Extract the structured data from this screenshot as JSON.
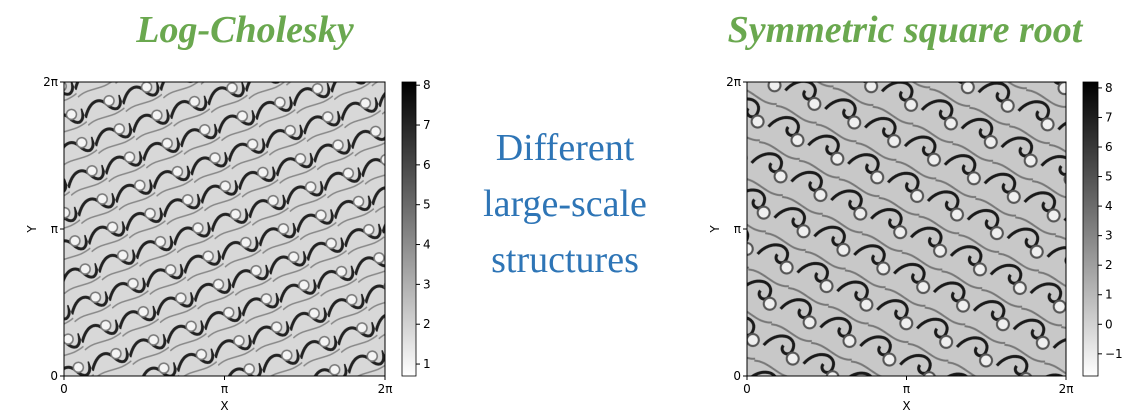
{
  "panels": [
    {
      "title": "Log-Cholesky",
      "x_label": "X",
      "y_label": "Y",
      "xlim": [
        0,
        6.28319
      ],
      "ylim": [
        0,
        6.28319
      ],
      "xticks": [
        0,
        {
          "value": 3.14159,
          "label": "π"
        },
        {
          "value": 6.28319,
          "label": "2π"
        }
      ],
      "yticks": [
        0,
        {
          "value": 3.14159,
          "label": "π"
        },
        {
          "value": 6.28319,
          "label": "2π"
        }
      ],
      "colorbar": {
        "lim": [
          0.7,
          8.08
        ],
        "ticks": [
          1,
          2,
          3,
          4,
          5,
          6,
          7,
          8
        ]
      }
    },
    {
      "title": "Symmetric square root",
      "x_label": "X",
      "y_label": "Y",
      "xlim": [
        0,
        6.28319
      ],
      "ylim": [
        0,
        6.28319
      ],
      "xticks": [
        0,
        {
          "value": 3.14159,
          "label": "π"
        },
        {
          "value": 6.28319,
          "label": "2π"
        }
      ],
      "yticks": [
        0,
        {
          "value": 3.14159,
          "label": "π"
        },
        {
          "value": 6.28319,
          "label": "2π"
        }
      ],
      "colorbar": {
        "lim": [
          -1.75,
          8.2
        ],
        "ticks": [
          {
            "value": -1,
            "label": "−1"
          },
          0,
          1,
          2,
          3,
          4,
          5,
          6,
          7,
          8
        ]
      }
    }
  ],
  "annotation": {
    "lines": [
      "Different",
      "large-scale",
      "structures"
    ]
  }
}
